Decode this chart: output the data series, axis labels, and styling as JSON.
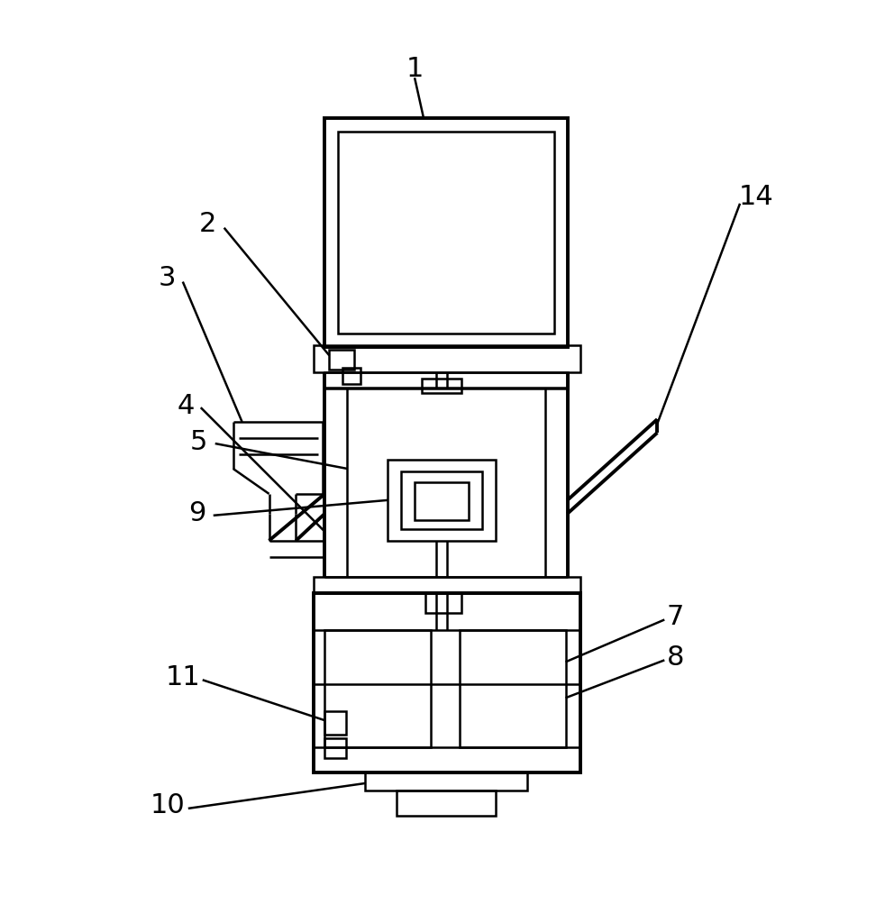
{
  "background_color": "#ffffff",
  "line_color": "#000000",
  "lw": 1.8,
  "lw2": 2.8,
  "fig_width": 9.72,
  "fig_height": 10.14,
  "dpi": 100
}
